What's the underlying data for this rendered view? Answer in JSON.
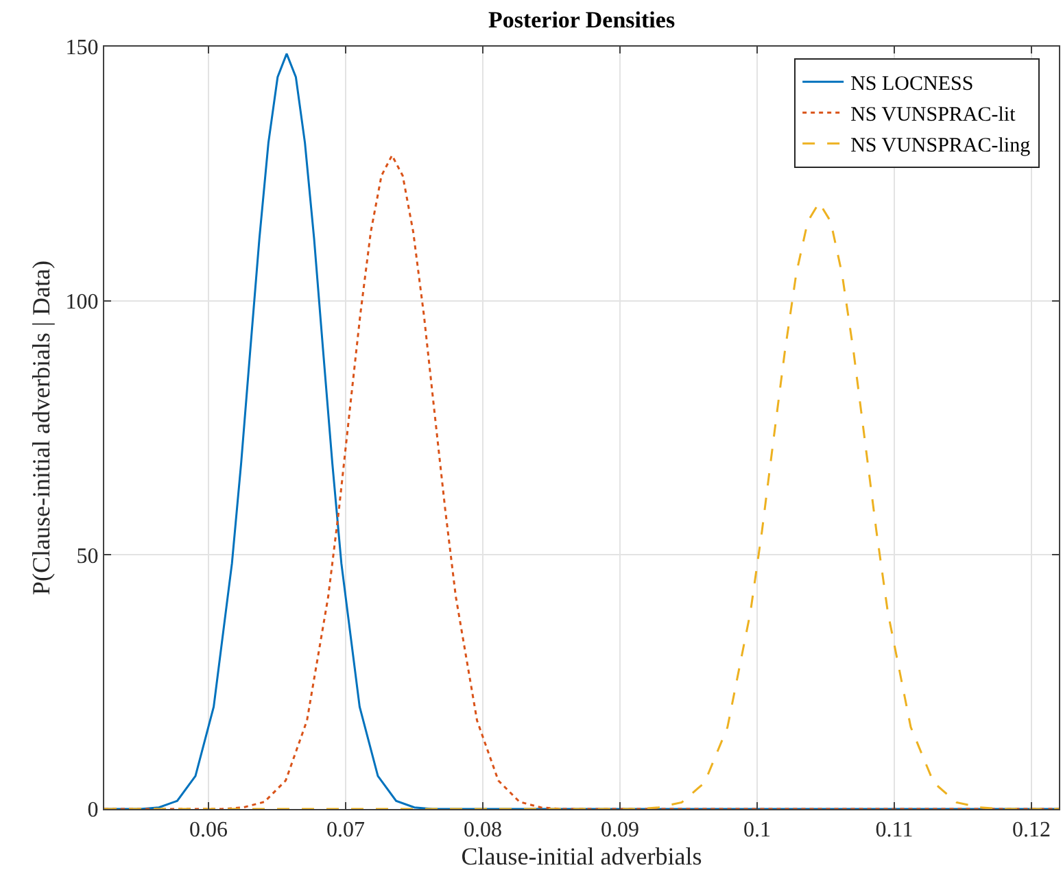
{
  "chart_data": {
    "type": "line",
    "title": "Posterior Densities",
    "xlabel": "Clause-initial adverbials",
    "ylabel": "P(Clause-initial adverbials | Data)",
    "xlim": [
      0.0524,
      0.122
    ],
    "xticks": [
      0.06,
      0.07,
      0.08,
      0.09,
      0.1,
      0.11,
      0.12
    ],
    "ylim": [
      0,
      150
    ],
    "yticks": [
      0,
      50,
      100,
      150
    ],
    "grid": true,
    "legend": "top right",
    "series": [
      {
        "name": "NS LOCNESS",
        "color": "#0072bd",
        "line_style": "solid",
        "x": [
          0.0524,
          0.05506,
          0.05639,
          0.05772,
          0.05905,
          0.06038,
          0.06171,
          0.06238,
          0.06304,
          0.06371,
          0.06437,
          0.06504,
          0.0657,
          0.06637,
          0.06703,
          0.0677,
          0.06836,
          0.06903,
          0.06969,
          0.07102,
          0.07235,
          0.07368,
          0.07501,
          0.07634,
          0.122
        ],
        "values": [
          0,
          0,
          0.3,
          1.6,
          6.5,
          20.1,
          48.3,
          68.0,
          90.1,
          112.2,
          131.1,
          144.0,
          148.6,
          144.0,
          131.1,
          112.2,
          90.1,
          68.0,
          48.3,
          20.1,
          6.5,
          1.6,
          0.3,
          0,
          0
        ]
      },
      {
        "name": "NS VUNSPRAC-lit",
        "color": "#d95319",
        "line_style": "dotted",
        "x": [
          0.0524,
          0.06098,
          0.06253,
          0.06408,
          0.06563,
          0.06718,
          0.06873,
          0.06951,
          0.07028,
          0.07106,
          0.07183,
          0.07261,
          0.07338,
          0.07416,
          0.07493,
          0.07571,
          0.07648,
          0.07726,
          0.07803,
          0.07958,
          0.08113,
          0.08268,
          0.08423,
          0.08578,
          0.122
        ],
        "values": [
          0,
          0,
          0.3,
          1.4,
          5.6,
          17.4,
          41.8,
          58.9,
          78.0,
          97.1,
          113.5,
          124.6,
          128.6,
          124.6,
          113.5,
          97.1,
          78.0,
          58.9,
          41.8,
          17.4,
          5.6,
          1.4,
          0.3,
          0,
          0
        ]
      },
      {
        "name": "NS VUNSPRAC-ling",
        "color": "#edb120",
        "line_style": "dashed",
        "x": [
          0.0524,
          0.09116,
          0.09283,
          0.0945,
          0.09617,
          0.09784,
          0.09951,
          0.10035,
          0.10118,
          0.10202,
          0.10285,
          0.10369,
          0.10452,
          0.10536,
          0.10619,
          0.10703,
          0.10786,
          0.1087,
          0.10953,
          0.1112,
          0.11287,
          0.11454,
          0.11621,
          0.11788,
          0.122
        ],
        "values": [
          0,
          0,
          0.3,
          1.3,
          5.2,
          16.1,
          38.7,
          54.6,
          72.4,
          90.0,
          105.3,
          115.6,
          119.3,
          115.6,
          105.3,
          90.0,
          72.4,
          54.6,
          38.7,
          16.1,
          5.2,
          1.3,
          0.3,
          0,
          0
        ]
      }
    ]
  }
}
